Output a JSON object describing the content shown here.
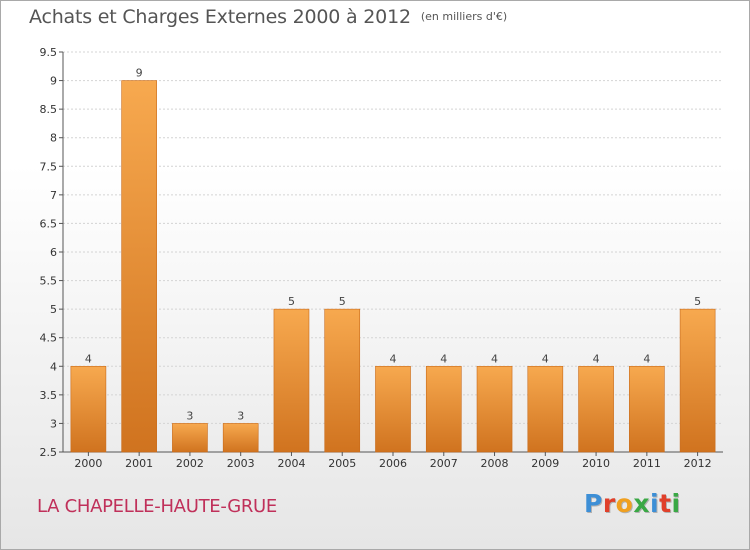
{
  "header": {
    "title": "Achats et Charges Externes 2000 à 2012",
    "unit_note": "(en milliers d'€)"
  },
  "footer": {
    "commune": "LA CHAPELLE-HAUTE-GRUE",
    "brand_letters": [
      "P",
      "r",
      "o",
      "x",
      "i",
      "t",
      "i"
    ],
    "brand_colors": [
      "#3d8fd6",
      "#e0402a",
      "#f0a020",
      "#3aa845",
      "#3d8fd6",
      "#e0402a",
      "#3aa845"
    ]
  },
  "chart_data": {
    "type": "bar",
    "title": "Achats et Charges Externes 2000 à 2012",
    "subtitle": "(en milliers d'€)",
    "xlabel": "",
    "ylabel": "",
    "categories": [
      "2000",
      "2001",
      "2002",
      "2003",
      "2004",
      "2005",
      "2006",
      "2007",
      "2008",
      "2009",
      "2010",
      "2011",
      "2012"
    ],
    "values": [
      4,
      9,
      3,
      3,
      5,
      5,
      4,
      4,
      4,
      4,
      4,
      4,
      5
    ],
    "value_labels": [
      "4",
      "9",
      "3",
      "3",
      "5",
      "5",
      "4",
      "4",
      "4",
      "4",
      "4",
      "4",
      "5"
    ],
    "ylim": [
      2.5,
      9.5
    ],
    "yticks": [
      2.5,
      3,
      3.5,
      4,
      4.5,
      5,
      5.5,
      6,
      6.5,
      7,
      7.5,
      8,
      8.5,
      9,
      9.5
    ],
    "ytick_labels": [
      "2.5",
      "3",
      "3.5",
      "4",
      "4.5",
      "5",
      "5.5",
      "6",
      "6.5",
      "7",
      "7.5",
      "8",
      "8.5",
      "9",
      "9.5"
    ],
    "grid": true,
    "bar_color": "#e8892f",
    "bar_color_light": "#f7a94f",
    "bar_color_dark": "#d0731f",
    "legend": "none"
  }
}
